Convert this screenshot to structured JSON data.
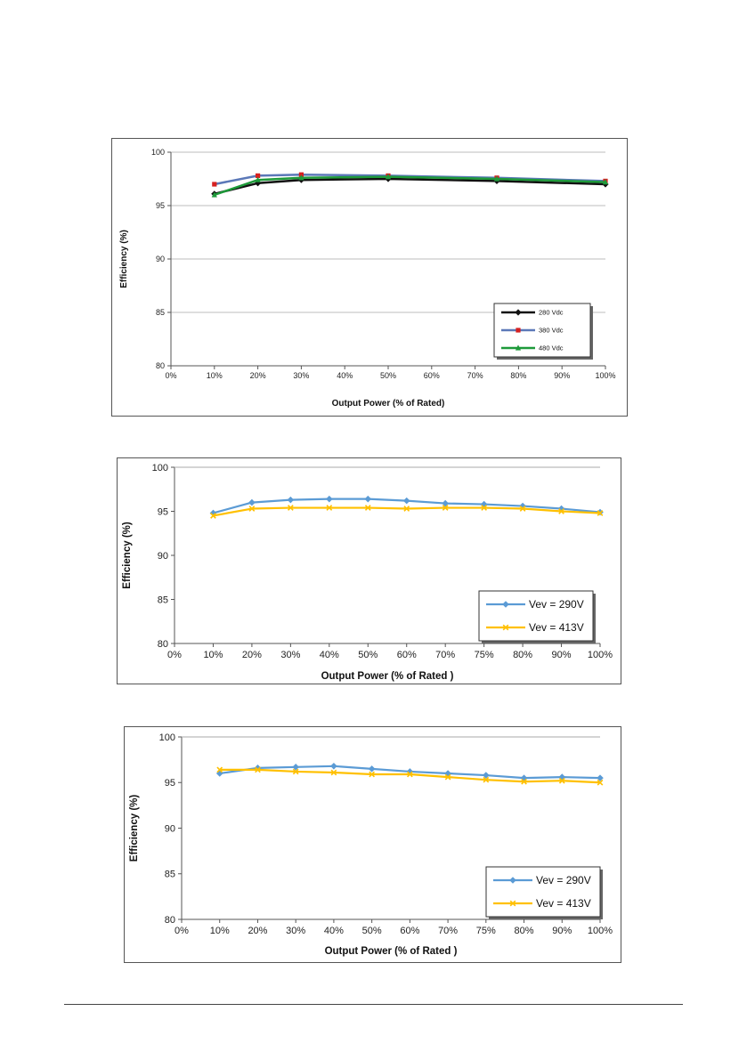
{
  "chart_data": [
    {
      "type": "line",
      "title": "",
      "xlabel": "Output Power (%  of Rated)",
      "ylabel": "Efficiency  (%)",
      "ylim": [
        80,
        100
      ],
      "yticks": [
        "80",
        "85",
        "90",
        "95",
        "100"
      ],
      "xticks": [
        "0%",
        "10%",
        "20%",
        "30%",
        "40%",
        "50%",
        "60%",
        "70%",
        "80%",
        "90%",
        "100%"
      ],
      "x_axis_scale": "linear percent, 0 to 100",
      "grid": "horizontal gridlines",
      "legend_position": "bottom-right",
      "series": [
        {
          "name": "280 Vdc",
          "color": "#111111",
          "marker": "diamond",
          "x": [
            10,
            20,
            30,
            50,
            75,
            100
          ],
          "y": [
            96.1,
            97.1,
            97.4,
            97.5,
            97.3,
            97.0
          ]
        },
        {
          "name": "380 Vdc",
          "color": "#5b78b8",
          "marker": "square",
          "marker_color": "#d62020",
          "x": [
            10,
            20,
            30,
            50,
            75,
            100
          ],
          "y": [
            97.0,
            97.8,
            97.9,
            97.8,
            97.6,
            97.3
          ]
        },
        {
          "name": "480 Vdc",
          "color": "#1e9a3a",
          "marker": "triangle",
          "x": [
            10,
            20,
            30,
            50,
            75,
            100
          ],
          "y": [
            96.0,
            97.4,
            97.6,
            97.7,
            97.5,
            97.2
          ]
        }
      ]
    },
    {
      "type": "line",
      "title": "",
      "xlabel": "Output Power (% of Rated )",
      "ylabel": "Efficiency (%)",
      "ylim": [
        80,
        100
      ],
      "yticks": [
        "80",
        "85",
        "90",
        "95",
        "100"
      ],
      "categories": [
        "0%",
        "10%",
        "20%",
        "30%",
        "40%",
        "50%",
        "60%",
        "70%",
        "75%",
        "80%",
        "90%",
        "100%"
      ],
      "grid": "none",
      "legend_position": "bottom-right",
      "series": [
        {
          "name": "Vev = 290V",
          "color": "#5b9bd5",
          "marker": "diamond",
          "values": [
            null,
            94.8,
            96.0,
            96.3,
            96.4,
            96.4,
            96.2,
            95.9,
            95.8,
            95.6,
            95.3,
            94.9
          ]
        },
        {
          "name": "Vev = 413V",
          "color": "#ffc000",
          "marker": "x",
          "values": [
            null,
            94.5,
            95.3,
            95.4,
            95.4,
            95.4,
            95.3,
            95.4,
            95.4,
            95.3,
            95.0,
            94.8
          ]
        }
      ]
    },
    {
      "type": "line",
      "title": "",
      "xlabel": "Output Power (% of Rated )",
      "ylabel": "Efficiency (%)",
      "ylim": [
        80,
        100
      ],
      "yticks": [
        "80",
        "85",
        "90",
        "95",
        "100"
      ],
      "categories": [
        "0%",
        "10%",
        "20%",
        "30%",
        "40%",
        "50%",
        "60%",
        "70%",
        "75%",
        "80%",
        "90%",
        "100%"
      ],
      "grid": "none",
      "legend_position": "bottom-right",
      "series": [
        {
          "name": "Vev = 290V",
          "color": "#5b9bd5",
          "marker": "diamond",
          "values": [
            null,
            96.0,
            96.6,
            96.7,
            96.8,
            96.5,
            96.2,
            96.0,
            95.8,
            95.5,
            95.6,
            95.5
          ]
        },
        {
          "name": "Vev = 413V",
          "color": "#ffc000",
          "marker": "x",
          "values": [
            null,
            96.4,
            96.4,
            96.2,
            96.1,
            95.9,
            95.9,
            95.6,
            95.3,
            95.1,
            95.2,
            95.0
          ]
        }
      ]
    }
  ]
}
